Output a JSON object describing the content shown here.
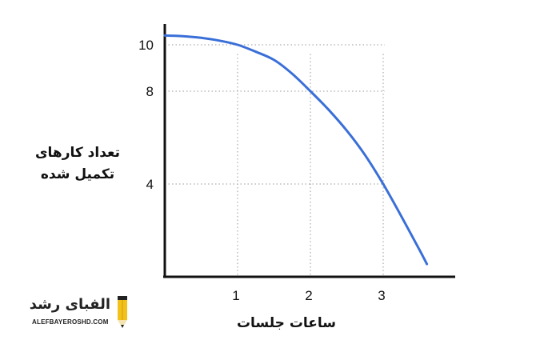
{
  "chart_data": {
    "type": "line",
    "title": "",
    "xlabel": "ساعات جلسات",
    "ylabel_lines": [
      "تعداد کارهای",
      "تکمیل شده"
    ],
    "x_ticks": [
      1,
      2,
      3
    ],
    "y_ticks": [
      4,
      8,
      10
    ],
    "xlim": [
      0,
      4
    ],
    "ylim": [
      0,
      11.5
    ],
    "grid": "dotted guides at tick values",
    "legend": "none",
    "line_color": "#3a6fd8",
    "series": [
      {
        "x": [
          0,
          0.25,
          0.5,
          0.75,
          1.0,
          1.25,
          1.5,
          1.75,
          2.0,
          2.25,
          2.5,
          2.75,
          3.0,
          3.25,
          3.5,
          3.6
        ],
        "y": [
          10.4,
          10.37,
          10.3,
          10.18,
          10.0,
          9.7,
          9.35,
          8.75,
          8.0,
          7.2,
          6.3,
          5.25,
          4.0,
          2.6,
          1.15,
          0.55
        ]
      }
    ]
  },
  "watermark": {
    "name": "الفبای رشد",
    "url": "ALEFBAYEROSHD.COM",
    "pencil_color": "#f2c21b"
  }
}
